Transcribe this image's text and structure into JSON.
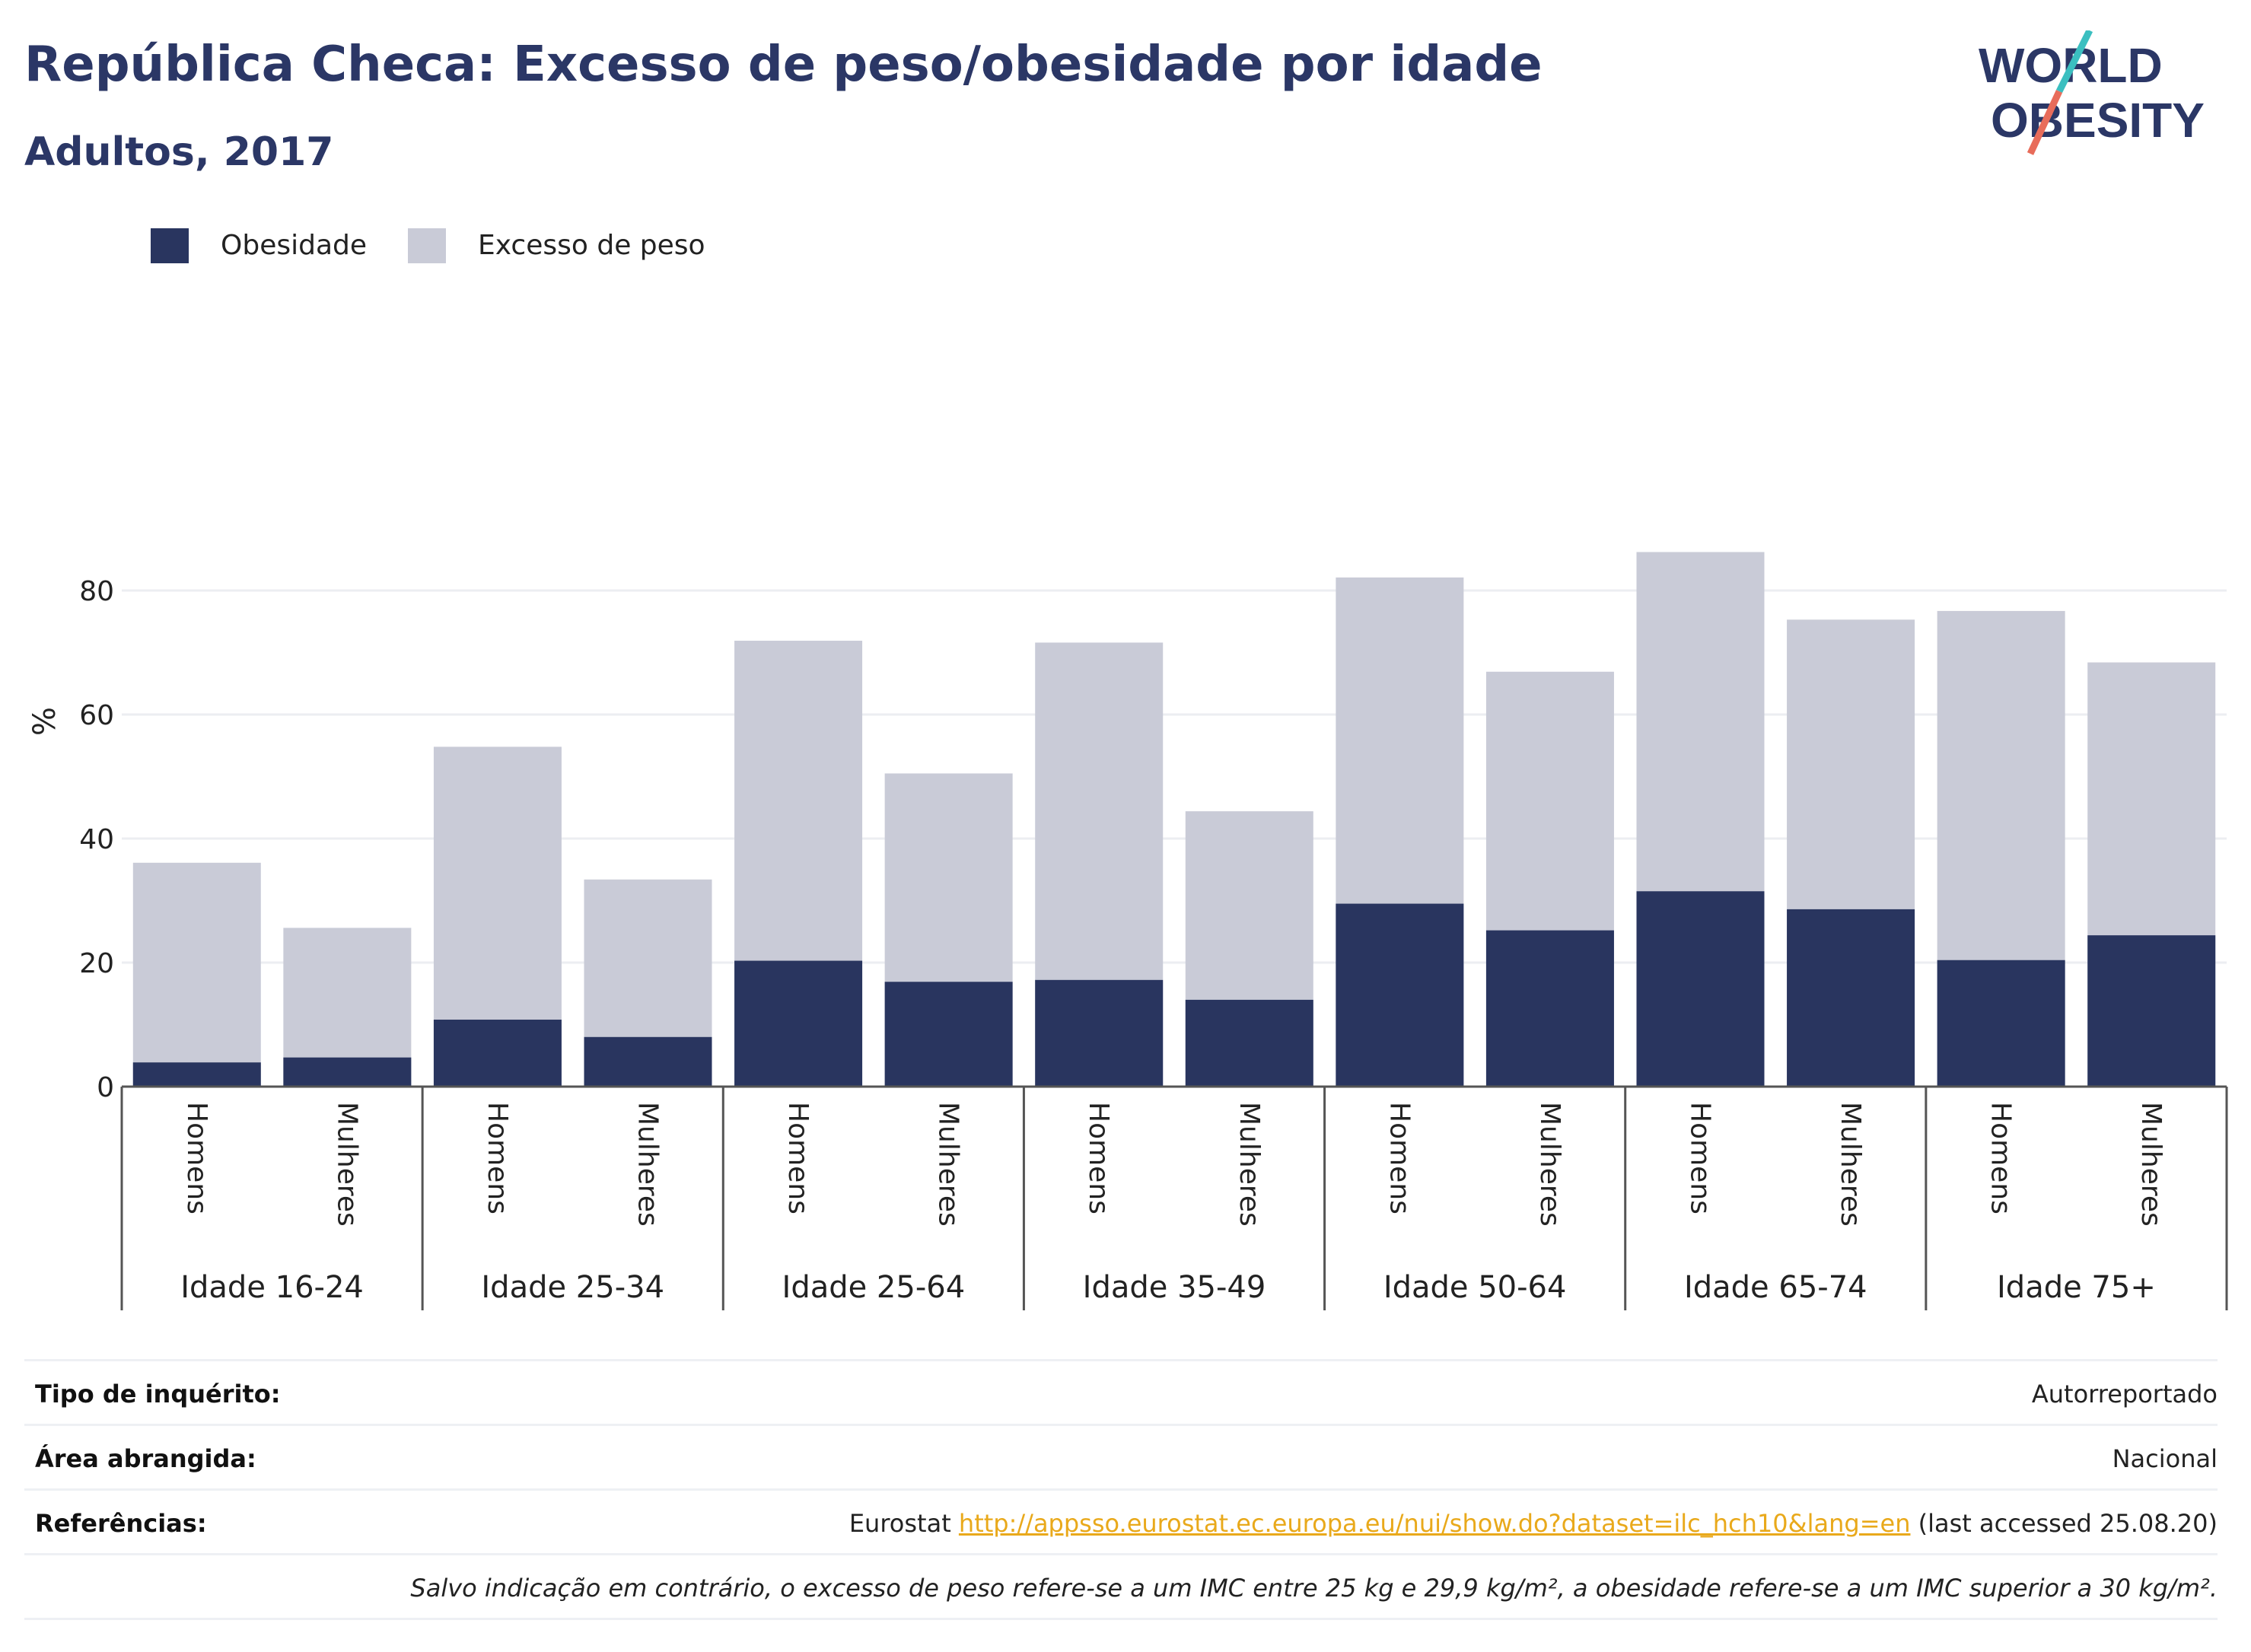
{
  "header": {
    "title": "República Checa: Excesso de peso/obesidade por idade",
    "subtitle": "Adultos, 2017"
  },
  "logo": {
    "line1": "WORLD",
    "line2": "OBESITY",
    "colors": {
      "text": "#2b3766",
      "slash_top": "#3bbfc0",
      "slash_bottom": "#e86c5a"
    }
  },
  "legend": {
    "items": [
      {
        "label": "Obesidade",
        "color": "#29355f"
      },
      {
        "label": "Excesso de peso",
        "color": "#c9cbd7"
      }
    ]
  },
  "chart_data": {
    "type": "bar",
    "stacked": "overlay",
    "ylabel": "%",
    "ylim": [
      0,
      90
    ],
    "yticks": [
      0,
      20,
      40,
      60,
      80
    ],
    "grid": true,
    "legend_position": "top-left",
    "groups": [
      "Idade 16-24",
      "Idade 25-34",
      "Idade 25-64",
      "Idade 35-49",
      "Idade 50-64",
      "Idade 65-74",
      "Idade 75+"
    ],
    "subcategories": [
      "Homens",
      "Mulheres"
    ],
    "series": [
      {
        "name": "Excesso de peso",
        "color": "#c9cbd7",
        "values": [
          36.1,
          25.6,
          54.8,
          33.4,
          71.9,
          50.5,
          71.6,
          44.4,
          82.1,
          66.9,
          86.2,
          75.3,
          76.7,
          68.4
        ]
      },
      {
        "name": "Obesidade",
        "color": "#29355f",
        "values": [
          3.9,
          4.7,
          10.8,
          8.0,
          20.3,
          16.9,
          17.2,
          14.0,
          29.5,
          25.2,
          31.5,
          28.6,
          20.4,
          24.4
        ]
      }
    ]
  },
  "info": {
    "rows": [
      {
        "key": "Tipo de inquérito:",
        "value": "Autorreportado"
      },
      {
        "key": "Área abrangida:",
        "value": "Nacional"
      }
    ],
    "references": {
      "key": "Referências:",
      "prefix": "Eurostat",
      "link": "http://appsso.eurostat.ec.europa.eu/nui/show.do?dataset=ilc_hch10&lang=en",
      "suffix": "(last accessed 25.08.20)"
    },
    "note": "Salvo indicação em contrário, o excesso de peso refere-se a um IMC entre 25 kg e 29,9 kg/m², a obesidade refere-se a um IMC superior a 30 kg/m²."
  }
}
